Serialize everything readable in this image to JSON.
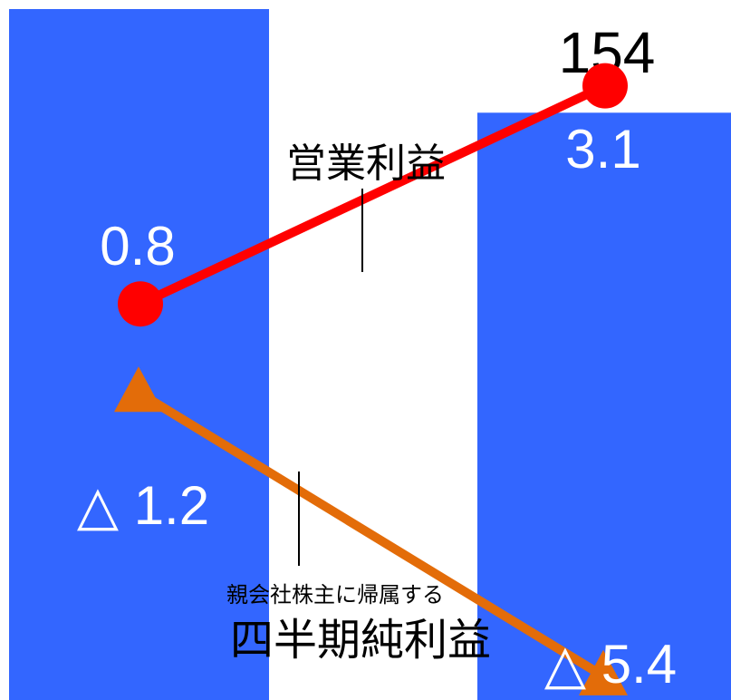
{
  "chart_data": {
    "type": "bar",
    "colors": {
      "bar": "#3366ff",
      "operating_line": "#ff0000",
      "net_line": "#e36c09",
      "bar_label": "#ffffff",
      "annotation": "#000000"
    },
    "bars": [
      {
        "value_label": "",
        "fill_fraction": 1.0
      },
      {
        "value_label": "154",
        "fill_fraction": 0.85
      }
    ],
    "series": [
      {
        "name": "営業利益",
        "marker": "circle",
        "values": [
          0.8,
          3.1
        ],
        "labels": [
          "0.8",
          "3.1"
        ]
      },
      {
        "name": "四半期純利益",
        "name_prefix": "親会社株主に帰属する",
        "marker": "triangle",
        "values": [
          -1.2,
          -5.4
        ],
        "labels": [
          "△ 1.2",
          "△ 5.4"
        ]
      }
    ]
  }
}
